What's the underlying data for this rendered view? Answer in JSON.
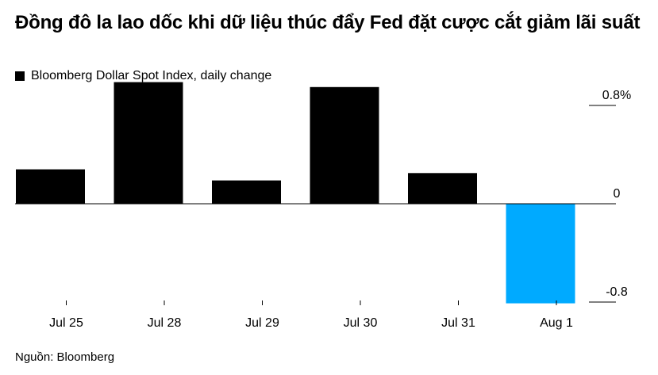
{
  "title": "Đồng đô la lao dốc khi dữ liệu thúc đẩy Fed đặt cược cắt giảm lãi suất",
  "legend_label": "Bloomberg Dollar Spot Index, daily change",
  "source": "Nguồn: Bloomberg",
  "colors": {
    "positive": "#000000",
    "highlight": "#00aaff",
    "axis": "#000000"
  },
  "chart_data": {
    "type": "bar",
    "categories": [
      "Jul 25",
      "Jul 28",
      "Jul 29",
      "Jul 30",
      "Jul 31",
      "Aug 1"
    ],
    "series": [
      {
        "values": [
          0.28,
          0.99,
          0.19,
          0.95,
          0.25,
          -0.81
        ]
      }
    ],
    "highlight_index": 5,
    "ylim": [
      -0.8,
      0.8
    ],
    "yticks": [
      0.8,
      0,
      -0.8
    ],
    "ytick_labels": [
      "0.8%",
      "0",
      "-0.8"
    ],
    "axis_position": "right",
    "grid": false,
    "legend_position": "top-left"
  }
}
